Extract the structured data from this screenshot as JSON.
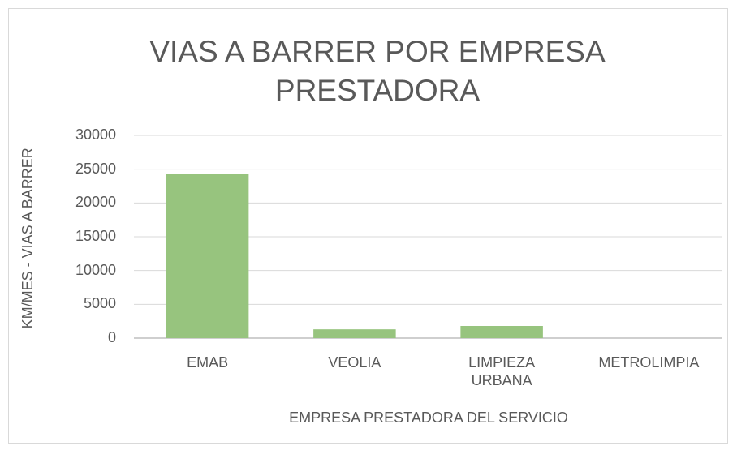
{
  "chart_data": {
    "type": "bar",
    "title": "VIAS A BARRER POR EMPRESA PRESTADORA",
    "x_label": "EMPRESA PRESTADORA DEL SERVICIO",
    "y_label": "KM/MES - VIAS A BARRER",
    "categories": [
      "EMAB",
      "VEOLIA",
      "LIMPIEZA URBANA",
      "METROLIMPIA"
    ],
    "values": [
      24300,
      1300,
      1800,
      0
    ],
    "color": "#97c47e",
    "ylim": [
      0,
      30000
    ],
    "yticks": [
      0,
      5000,
      10000,
      15000,
      20000,
      25000,
      30000
    ],
    "grid": true
  }
}
